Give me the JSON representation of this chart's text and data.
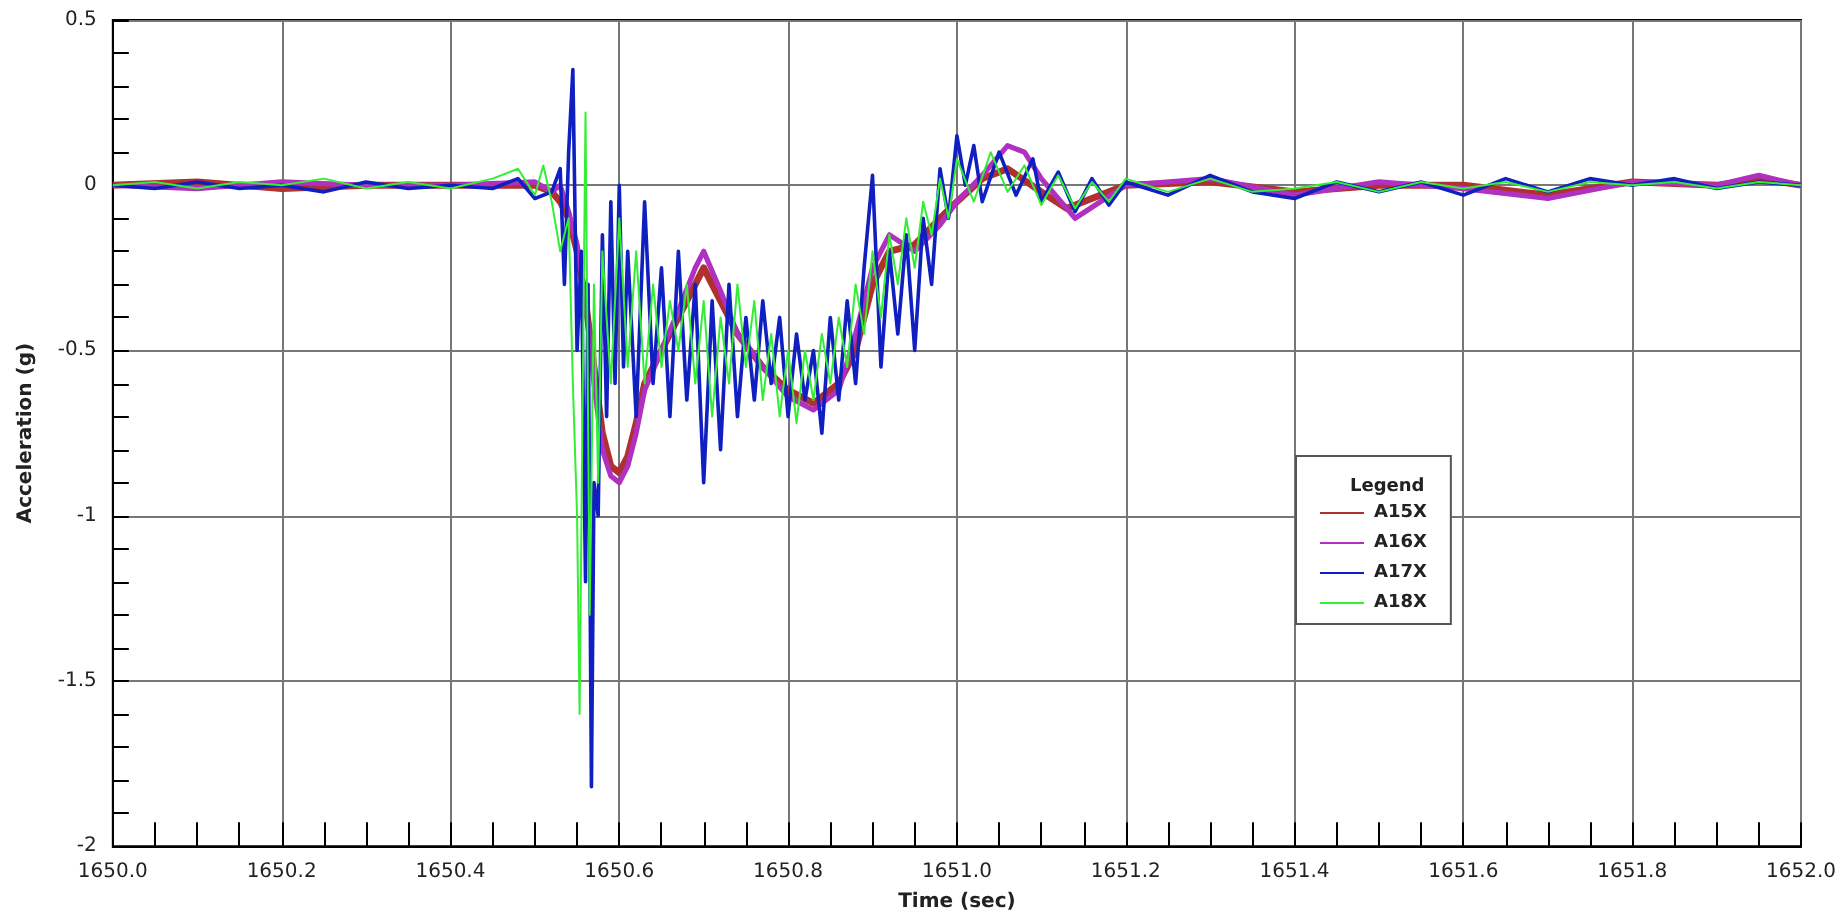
{
  "chart_data": {
    "type": "line",
    "xlabel": "Time (sec)",
    "ylabel": "Acceleration (g)",
    "legend_title": "Legend",
    "legend": "right",
    "grid": true,
    "marker": "none",
    "line_style": "solid",
    "xlim": [
      1650.0,
      1652.0
    ],
    "xticks": [
      {
        "value": 1650.0,
        "label": "1650.0"
      },
      {
        "value": 1650.05,
        "label": null
      },
      {
        "value": 1650.1,
        "label": null
      },
      {
        "value": 1650.15,
        "label": null
      },
      1650.2,
      {
        "value": 1650.25,
        "label": null
      },
      {
        "value": 1650.3,
        "label": null
      },
      {
        "value": 1650.35,
        "label": null
      },
      1650.4,
      {
        "value": 1650.45,
        "label": null
      },
      {
        "value": 1650.5,
        "label": null
      },
      {
        "value": 1650.55,
        "label": null
      },
      1650.6,
      {
        "value": 1650.65,
        "label": null
      },
      {
        "value": 1650.7,
        "label": null
      },
      {
        "value": 1650.75,
        "label": null
      },
      1650.8,
      {
        "value": 1650.85,
        "label": null
      },
      {
        "value": 1650.9,
        "label": null
      },
      {
        "value": 1650.95,
        "label": null
      },
      {
        "value": 1651.0,
        "label": "1651.0"
      },
      {
        "value": 1651.05,
        "label": null
      },
      {
        "value": 1651.1,
        "label": null
      },
      {
        "value": 1651.15,
        "label": null
      },
      1651.2,
      {
        "value": 1651.25,
        "label": null
      },
      {
        "value": 1651.3,
        "label": null
      },
      {
        "value": 1651.35,
        "label": null
      },
      1651.4,
      {
        "value": 1651.45,
        "label": null
      },
      {
        "value": 1651.5,
        "label": null
      },
      {
        "value": 1651.55,
        "label": null
      },
      1651.6,
      {
        "value": 1651.65,
        "label": null
      },
      {
        "value": 1651.7,
        "label": null
      },
      {
        "value": 1651.75,
        "label": null
      },
      1651.8,
      {
        "value": 1651.85,
        "label": null
      },
      {
        "value": 1651.9,
        "label": null
      },
      {
        "value": 1651.95,
        "label": null
      },
      {
        "value": 1652.0,
        "label": "1652.0"
      }
    ],
    "ylim": [
      -2,
      0.5
    ],
    "yticks": [
      -2,
      {
        "value": -1.9,
        "label": null
      },
      {
        "value": -1.8,
        "label": null
      },
      {
        "value": -1.7,
        "label": null
      },
      {
        "value": -1.6,
        "label": null
      },
      -1.5,
      {
        "value": -1.4,
        "label": null
      },
      {
        "value": -1.3,
        "label": null
      },
      {
        "value": -1.2,
        "label": null
      },
      {
        "value": -1.1,
        "label": null
      },
      -1,
      {
        "value": -0.9,
        "label": null
      },
      {
        "value": -0.8,
        "label": null
      },
      {
        "value": -0.7,
        "label": null
      },
      {
        "value": -0.6,
        "label": null
      },
      -0.5,
      {
        "value": -0.4,
        "label": null
      },
      {
        "value": -0.3,
        "label": null
      },
      {
        "value": -0.2,
        "label": null
      },
      {
        "value": -0.1,
        "label": null
      },
      0,
      {
        "value": 0.1,
        "label": null
      },
      {
        "value": 0.2,
        "label": null
      },
      {
        "value": 0.3,
        "label": null
      },
      {
        "value": 0.4,
        "label": null
      },
      0.5
    ],
    "series": [
      {
        "name": "A15X",
        "color": "#b03030",
        "x": [
          1650.0,
          1650.1,
          1650.2,
          1650.3,
          1650.4,
          1650.5,
          1650.52,
          1650.53,
          1650.54,
          1650.55,
          1650.56,
          1650.57,
          1650.58,
          1650.59,
          1650.6,
          1650.61,
          1650.62,
          1650.63,
          1650.65,
          1650.67,
          1650.69,
          1650.7,
          1650.72,
          1650.74,
          1650.77,
          1650.8,
          1650.83,
          1650.86,
          1650.88,
          1650.9,
          1650.92,
          1650.95,
          1650.98,
          1651.0,
          1651.03,
          1651.06,
          1651.1,
          1651.13,
          1651.2,
          1651.3,
          1651.4,
          1651.5,
          1651.6,
          1651.7,
          1651.8,
          1651.9,
          1651.95,
          1652.0
        ],
        "values": [
          0,
          0.01,
          -0.01,
          0,
          0,
          0,
          -0.02,
          -0.05,
          -0.1,
          -0.2,
          -0.35,
          -0.55,
          -0.75,
          -0.85,
          -0.87,
          -0.82,
          -0.72,
          -0.6,
          -0.5,
          -0.4,
          -0.3,
          -0.25,
          -0.35,
          -0.45,
          -0.55,
          -0.62,
          -0.66,
          -0.6,
          -0.5,
          -0.3,
          -0.2,
          -0.18,
          -0.1,
          -0.05,
          0.02,
          0.05,
          -0.02,
          -0.07,
          0,
          0.01,
          -0.02,
          0,
          0,
          -0.03,
          0.01,
          0,
          0.02,
          0
        ]
      },
      {
        "name": "A16X",
        "color": "#b030c0",
        "x": [
          1650.0,
          1650.1,
          1650.2,
          1650.3,
          1650.4,
          1650.5,
          1650.52,
          1650.53,
          1650.54,
          1650.55,
          1650.56,
          1650.57,
          1650.58,
          1650.59,
          1650.6,
          1650.61,
          1650.62,
          1650.63,
          1650.65,
          1650.67,
          1650.69,
          1650.7,
          1650.72,
          1650.74,
          1650.77,
          1650.8,
          1650.83,
          1650.86,
          1650.88,
          1650.9,
          1650.92,
          1650.95,
          1650.98,
          1651.0,
          1651.03,
          1651.06,
          1651.08,
          1651.1,
          1651.14,
          1651.2,
          1651.3,
          1651.4,
          1651.5,
          1651.6,
          1651.7,
          1651.8,
          1651.9,
          1651.95,
          1652.0
        ],
        "values": [
          0,
          -0.01,
          0.01,
          0,
          0,
          0.01,
          -0.02,
          0,
          -0.08,
          -0.18,
          -0.35,
          -0.6,
          -0.8,
          -0.88,
          -0.9,
          -0.85,
          -0.75,
          -0.62,
          -0.5,
          -0.38,
          -0.25,
          -0.2,
          -0.32,
          -0.45,
          -0.55,
          -0.64,
          -0.68,
          -0.62,
          -0.45,
          -0.25,
          -0.15,
          -0.2,
          -0.12,
          -0.05,
          0.03,
          0.12,
          0.1,
          0.02,
          -0.1,
          0,
          0.02,
          -0.03,
          0.01,
          -0.01,
          -0.04,
          0.01,
          0,
          0.03,
          0
        ]
      },
      {
        "name": "A17X",
        "color": "#1020c0",
        "x": [
          1650.0,
          1650.05,
          1650.1,
          1650.15,
          1650.2,
          1650.25,
          1650.3,
          1650.35,
          1650.4,
          1650.45,
          1650.48,
          1650.5,
          1650.52,
          1650.53,
          1650.535,
          1650.54,
          1650.545,
          1650.55,
          1650.555,
          1650.56,
          1650.563,
          1650.567,
          1650.57,
          1650.575,
          1650.58,
          1650.585,
          1650.59,
          1650.595,
          1650.6,
          1650.605,
          1650.61,
          1650.62,
          1650.63,
          1650.64,
          1650.65,
          1650.66,
          1650.67,
          1650.68,
          1650.69,
          1650.7,
          1650.71,
          1650.72,
          1650.73,
          1650.74,
          1650.75,
          1650.76,
          1650.77,
          1650.78,
          1650.79,
          1650.8,
          1650.81,
          1650.82,
          1650.83,
          1650.84,
          1650.85,
          1650.86,
          1650.87,
          1650.88,
          1650.89,
          1650.9,
          1650.91,
          1650.92,
          1650.93,
          1650.94,
          1650.95,
          1650.96,
          1650.97,
          1650.98,
          1650.99,
          1651.0,
          1651.01,
          1651.02,
          1651.03,
          1651.05,
          1651.07,
          1651.09,
          1651.1,
          1651.12,
          1651.14,
          1651.16,
          1651.18,
          1651.2,
          1651.25,
          1651.3,
          1651.35,
          1651.4,
          1651.45,
          1651.5,
          1651.55,
          1651.6,
          1651.65,
          1651.7,
          1651.75,
          1651.8,
          1651.85,
          1651.9,
          1651.95,
          1652.0
        ],
        "values": [
          0,
          -0.01,
          0.01,
          -0.01,
          0,
          -0.02,
          0.01,
          -0.01,
          0,
          -0.01,
          0.02,
          -0.04,
          -0.02,
          0.05,
          -0.3,
          0.1,
          0.35,
          -0.5,
          -0.2,
          -1.2,
          -0.3,
          -1.82,
          -0.9,
          -1.0,
          -0.15,
          -0.7,
          -0.05,
          -0.6,
          0,
          -0.55,
          -0.2,
          -0.7,
          -0.05,
          -0.6,
          -0.25,
          -0.7,
          -0.2,
          -0.65,
          -0.3,
          -0.9,
          -0.35,
          -0.8,
          -0.3,
          -0.7,
          -0.4,
          -0.65,
          -0.35,
          -0.6,
          -0.4,
          -0.7,
          -0.45,
          -0.65,
          -0.5,
          -0.75,
          -0.4,
          -0.65,
          -0.35,
          -0.6,
          -0.25,
          0.03,
          -0.55,
          -0.2,
          -0.45,
          -0.15,
          -0.5,
          -0.1,
          -0.3,
          0.05,
          -0.1,
          0.15,
          0,
          0.12,
          -0.05,
          0.1,
          -0.03,
          0.08,
          -0.05,
          0.04,
          -0.08,
          0.02,
          -0.06,
          0.01,
          -0.03,
          0.03,
          -0.02,
          -0.04,
          0.01,
          -0.02,
          0.01,
          -0.03,
          0.02,
          -0.02,
          0.02,
          0,
          0.02,
          -0.01,
          0.01,
          0
        ]
      },
      {
        "name": "A18X",
        "color": "#33ee33",
        "x": [
          1650.0,
          1650.05,
          1650.1,
          1650.15,
          1650.2,
          1650.25,
          1650.3,
          1650.35,
          1650.4,
          1650.45,
          1650.48,
          1650.5,
          1650.51,
          1650.52,
          1650.53,
          1650.54,
          1650.545,
          1650.55,
          1650.553,
          1650.556,
          1650.56,
          1650.565,
          1650.57,
          1650.575,
          1650.58,
          1650.59,
          1650.6,
          1650.61,
          1650.62,
          1650.63,
          1650.64,
          1650.65,
          1650.66,
          1650.67,
          1650.68,
          1650.69,
          1650.7,
          1650.71,
          1650.72,
          1650.73,
          1650.74,
          1650.75,
          1650.76,
          1650.77,
          1650.78,
          1650.79,
          1650.8,
          1650.81,
          1650.82,
          1650.83,
          1650.84,
          1650.85,
          1650.86,
          1650.87,
          1650.88,
          1650.89,
          1650.9,
          1650.91,
          1650.92,
          1650.93,
          1650.94,
          1650.95,
          1650.96,
          1650.97,
          1650.98,
          1650.99,
          1651.0,
          1651.02,
          1651.04,
          1651.06,
          1651.08,
          1651.1,
          1651.12,
          1651.14,
          1651.16,
          1651.18,
          1651.2,
          1651.25,
          1651.3,
          1651.35,
          1651.4,
          1651.45,
          1651.5,
          1651.55,
          1651.6,
          1651.65,
          1651.7,
          1651.75,
          1651.8,
          1651.85,
          1651.9,
          1651.95,
          1652.0
        ],
        "values": [
          0,
          0.01,
          -0.01,
          0.01,
          0,
          0.02,
          -0.01,
          0.01,
          -0.01,
          0.02,
          0.05,
          -0.03,
          0.06,
          -0.05,
          -0.2,
          -0.1,
          -0.6,
          -1.0,
          -1.6,
          -0.8,
          0.22,
          -1.3,
          -0.3,
          -0.9,
          -0.2,
          -0.6,
          -0.1,
          -0.55,
          -0.2,
          -0.6,
          -0.3,
          -0.55,
          -0.35,
          -0.5,
          -0.3,
          -0.6,
          -0.35,
          -0.7,
          -0.4,
          -0.6,
          -0.3,
          -0.55,
          -0.35,
          -0.65,
          -0.45,
          -0.7,
          -0.5,
          -0.72,
          -0.5,
          -0.65,
          -0.45,
          -0.6,
          -0.4,
          -0.55,
          -0.3,
          -0.45,
          -0.2,
          -0.4,
          -0.15,
          -0.3,
          -0.1,
          -0.25,
          -0.05,
          -0.15,
          0.02,
          -0.1,
          0.08,
          -0.05,
          0.1,
          -0.02,
          0.06,
          -0.06,
          0.03,
          -0.07,
          0.01,
          -0.05,
          0.02,
          -0.02,
          0.02,
          -0.02,
          -0.01,
          0.01,
          -0.02,
          0.01,
          -0.01,
          0.01,
          -0.02,
          0.01,
          0,
          0.01,
          -0.01,
          0.01,
          0
        ]
      }
    ]
  }
}
